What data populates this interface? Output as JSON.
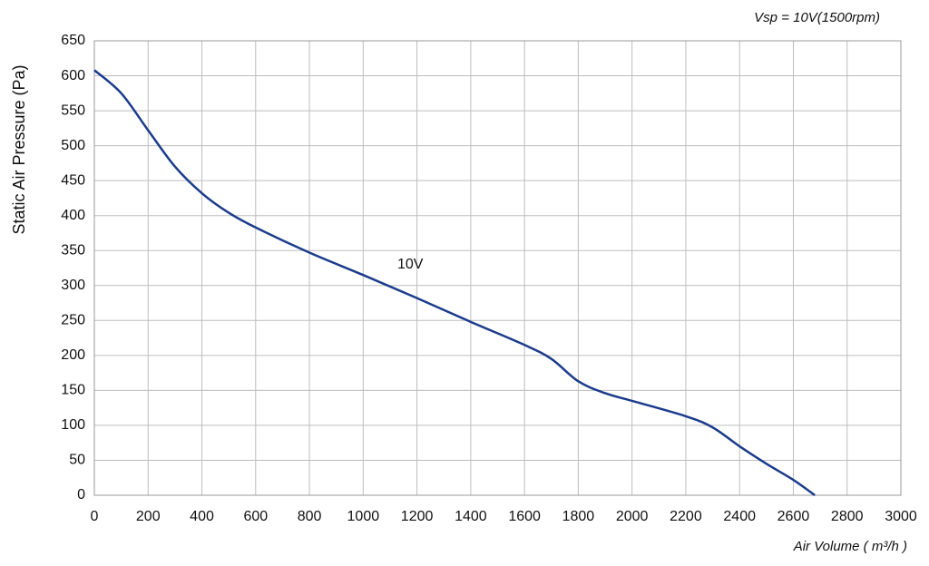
{
  "chart_data": {
    "type": "line",
    "subtitle": "Vsp = 10V(1500rpm)",
    "x_label": "Air Volume ( m³/h )",
    "y_label": "Static Air Pressure  (Pa)",
    "x": [
      0,
      100,
      200,
      300,
      400,
      500,
      600,
      800,
      1000,
      1200,
      1400,
      1600,
      1700,
      1800,
      1900,
      2000,
      2200,
      2300,
      2400,
      2500,
      2600,
      2680
    ],
    "series": [
      {
        "name": "10V",
        "color": "#1b3c8c",
        "values": [
          608,
          575,
          522,
          470,
          432,
          404,
          383,
          347,
          315,
          282,
          248,
          215,
          195,
          163,
          146,
          135,
          113,
          97,
          70,
          45,
          22,
          0
        ]
      }
    ],
    "xlim": [
      0,
      3000
    ],
    "ylim": [
      0,
      650
    ],
    "xticks": [
      0,
      200,
      400,
      600,
      800,
      1000,
      1200,
      1400,
      1600,
      1800,
      2000,
      2200,
      2400,
      2600,
      2800,
      3000
    ],
    "yticks": [
      0,
      50,
      100,
      150,
      200,
      250,
      300,
      350,
      400,
      450,
      500,
      550,
      600,
      650
    ],
    "grid": true
  }
}
